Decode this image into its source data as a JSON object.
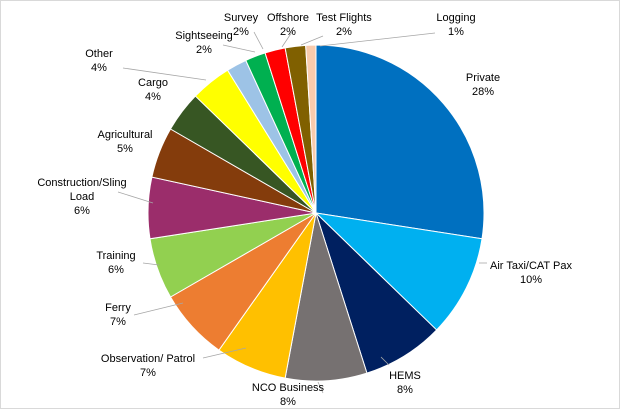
{
  "chart_data": {
    "type": "pie",
    "title": "",
    "start_angle_deg": 0,
    "direction": "clockwise",
    "slices": [
      {
        "name": "Private",
        "value": 28,
        "label": "28%",
        "color": "#0070C0"
      },
      {
        "name": "Air Taxi/CAT Pax",
        "value": 10,
        "label": "10%",
        "color": "#00B0F0"
      },
      {
        "name": "HEMS",
        "value": 8,
        "label": "8%",
        "color": "#002060"
      },
      {
        "name": "NCO Business",
        "value": 8,
        "label": "8%",
        "color": "#767171"
      },
      {
        "name": "Observation/ Patrol",
        "value": 7,
        "label": "7%",
        "color": "#FFC000"
      },
      {
        "name": "Ferry",
        "value": 7,
        "label": "7%",
        "color": "#ED7D31"
      },
      {
        "name": "Training",
        "value": 6,
        "label": "6%",
        "color": "#92D050"
      },
      {
        "name": "Construction/Sling Load",
        "value": 6,
        "label": "6%",
        "color": "#9B2D6B"
      },
      {
        "name": "Agricultural",
        "value": 5,
        "label": "5%",
        "color": "#843C0C"
      },
      {
        "name": "Cargo",
        "value": 4,
        "label": "4%",
        "color": "#375623"
      },
      {
        "name": "Other",
        "value": 4,
        "label": "4%",
        "color": "#FFFF00"
      },
      {
        "name": "Sightseeing",
        "value": 2,
        "label": "2%",
        "color": "#9DC3E6"
      },
      {
        "name": "Survey",
        "value": 2,
        "label": "2%",
        "color": "#00B050"
      },
      {
        "name": "Offshore",
        "value": 2,
        "label": "2%",
        "color": "#FF0000"
      },
      {
        "name": "Test Flights",
        "value": 2,
        "label": "2%",
        "color": "#806000"
      },
      {
        "name": "Logging",
        "value": 1,
        "label": "1%",
        "color": "#F8CBAD"
      }
    ]
  }
}
